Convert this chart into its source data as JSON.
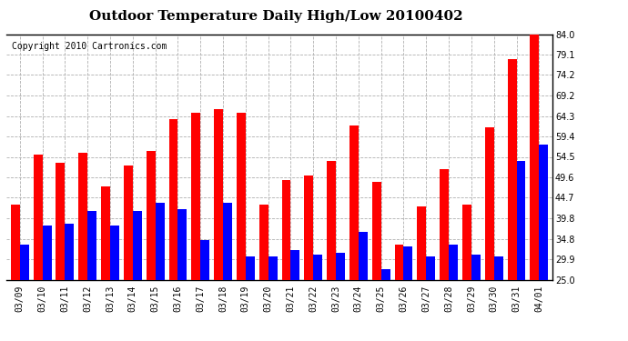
{
  "title": "Outdoor Temperature Daily High/Low 20100402",
  "copyright": "Copyright 2010 Cartronics.com",
  "dates": [
    "03/09",
    "03/10",
    "03/11",
    "03/12",
    "03/13",
    "03/14",
    "03/15",
    "03/16",
    "03/17",
    "03/18",
    "03/19",
    "03/20",
    "03/21",
    "03/22",
    "03/23",
    "03/24",
    "03/25",
    "03/26",
    "03/27",
    "03/28",
    "03/29",
    "03/30",
    "03/31",
    "04/01"
  ],
  "highs": [
    43.0,
    55.0,
    53.0,
    55.5,
    47.5,
    52.5,
    56.0,
    63.5,
    65.0,
    66.0,
    65.0,
    43.0,
    49.0,
    50.0,
    53.5,
    62.0,
    48.5,
    33.5,
    42.5,
    51.5,
    43.0,
    61.5,
    78.0,
    84.0
  ],
  "lows": [
    33.5,
    38.0,
    38.5,
    41.5,
    38.0,
    41.5,
    43.5,
    42.0,
    34.5,
    43.5,
    30.5,
    30.5,
    32.0,
    31.0,
    31.5,
    36.5,
    27.5,
    33.0,
    30.5,
    33.5,
    31.0,
    30.5,
    53.5,
    57.5
  ],
  "high_color": "#ff0000",
  "low_color": "#0000ff",
  "bg_color": "#ffffff",
  "grid_color": "#b0b0b0",
  "ylim": [
    25.0,
    84.0
  ],
  "yticks": [
    25.0,
    29.9,
    34.8,
    39.8,
    44.7,
    49.6,
    54.5,
    59.4,
    64.3,
    69.2,
    74.2,
    79.1,
    84.0
  ],
  "title_fontsize": 11,
  "tick_fontsize": 7,
  "copyright_fontsize": 7
}
